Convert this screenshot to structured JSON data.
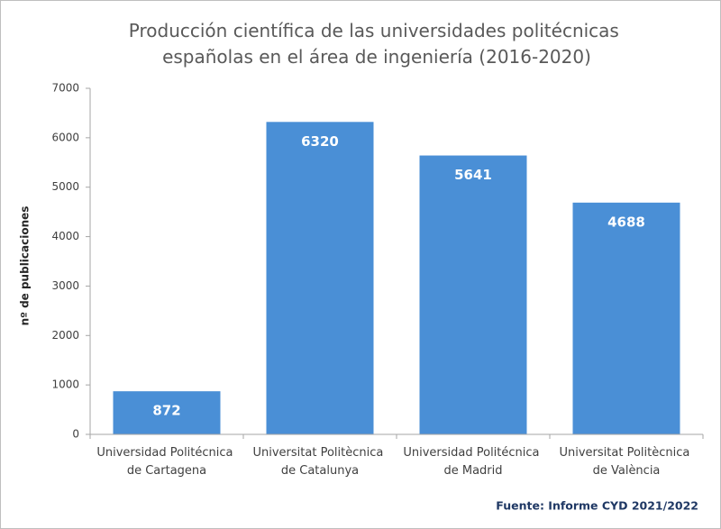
{
  "chart_data": {
    "type": "bar",
    "title": "Producción científica de las universidades politécnicas españolas en el área de ingeniería (2016-2020)",
    "y_label": "nº de publicaciones",
    "source": "Fuente: Informe CYD 2021/2022",
    "categories": [
      "Universidad Politécnica de Cartagena",
      "Universitat Politècnica de Catalunya",
      "Universidad Politécnica de Madrid",
      "Universitat Politècnica de València"
    ],
    "values": [
      872,
      6320,
      5641,
      4688
    ],
    "color": "#4a8fd6",
    "ylim": [
      0,
      7000
    ],
    "yticks": [
      0,
      1000,
      2000,
      3000,
      4000,
      5000,
      6000,
      7000
    ],
    "grid": false
  }
}
